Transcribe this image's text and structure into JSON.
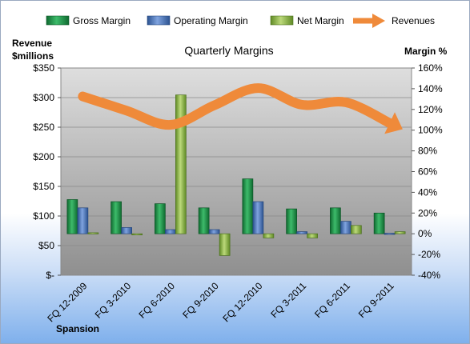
{
  "chart_data": {
    "type": "bar",
    "title": "Quarterly Margins",
    "company": "Spansion",
    "left_axis_label": [
      "Revenue",
      "$millions"
    ],
    "right_axis_label": "Margin %",
    "categories": [
      "FQ 12-2009",
      "FQ 3-2010",
      "FQ 6-2010",
      "FQ 9-2010",
      "FQ 12-2010",
      "FQ 3-2011",
      "FQ 6-2011",
      "FQ 9-2011"
    ],
    "left_ticks": [
      "$-",
      "$50",
      "$100",
      "$150",
      "$200",
      "$250",
      "$300",
      "$350"
    ],
    "left_ylim": [
      0,
      350
    ],
    "right_ticks": [
      "-40%",
      "-20%",
      "0%",
      "20%",
      "40%",
      "60%",
      "80%",
      "100%",
      "120%",
      "140%",
      "160%"
    ],
    "right_ylim": [
      -40,
      160
    ],
    "series": [
      {
        "name": "Gross Margin",
        "axis": "right",
        "color": "#1e8a44",
        "values": [
          33,
          31,
          29,
          25,
          53,
          24,
          25,
          20
        ]
      },
      {
        "name": "Operating Margin",
        "axis": "right",
        "color": "#4a74b8",
        "values": [
          25,
          6,
          4,
          4,
          31,
          2,
          12,
          0.5
        ]
      },
      {
        "name": "Net Margin",
        "axis": "right",
        "color": "#8db048",
        "values": [
          1,
          -0.5,
          134,
          -21,
          -4,
          -4,
          8,
          2
        ]
      },
      {
        "name": "Revenues",
        "axis": "left",
        "type": "line",
        "color": "#ef8a3a",
        "values": [
          302,
          278,
          254,
          287,
          316,
          288,
          292,
          257
        ]
      }
    ],
    "legend_position": "top",
    "grid": true
  }
}
